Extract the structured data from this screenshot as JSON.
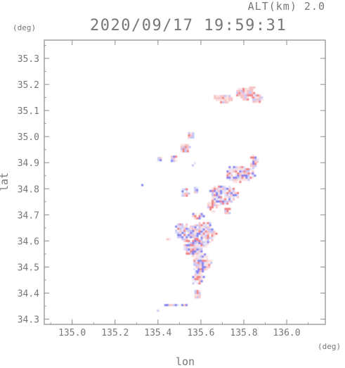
{
  "header": {
    "altitude_label": "ALT(km) 2.0",
    "timestamp": "2020/09/17 19:59:31"
  },
  "axes": {
    "y_unit": "(deg)",
    "x_unit": "(deg)",
    "x_label": "lon",
    "y_label": "lat"
  },
  "colors": {
    "axis": "#8a8a8a",
    "text": "#777777",
    "positive": "#f08080",
    "positive_light": "#f7c2c4",
    "negative": "#7f7ff0",
    "negative_light": "#c4c4f7"
  },
  "chart_data": {
    "type": "heatmap",
    "title": "2020/09/17 19:59:31",
    "subtitle": "ALT(km) 2.0",
    "xlabel": "lon",
    "ylabel": "lat",
    "x_unit": "(deg)",
    "y_unit": "(deg)",
    "xlim": [
      134.87,
      136.18
    ],
    "ylim": [
      34.28,
      35.37
    ],
    "x_ticks": [
      "135.0",
      "135.2",
      "135.4",
      "135.6",
      "135.8",
      "136.0"
    ],
    "y_ticks": [
      "34.3",
      "34.4",
      "34.5",
      "34.6",
      "34.7",
      "34.8",
      "34.9",
      "35.0",
      "35.1",
      "35.2",
      "35.3"
    ],
    "colormap": "diverging blue-white-red, no colorbar shown",
    "regions": [
      {
        "lon": 135.8,
        "lat": 35.17,
        "rx": 0.045,
        "ry": 0.025,
        "polarity": "positive"
      },
      {
        "lon": 135.7,
        "lat": 35.15,
        "rx": 0.05,
        "ry": 0.018,
        "polarity": "positive"
      },
      {
        "lon": 135.86,
        "lat": 35.15,
        "rx": 0.03,
        "ry": 0.02,
        "polarity": "positive"
      },
      {
        "lon": 135.83,
        "lat": 35.19,
        "rx": 0.015,
        "ry": 0.01,
        "polarity": "positive"
      },
      {
        "lon": 135.55,
        "lat": 35.01,
        "rx": 0.02,
        "ry": 0.015,
        "polarity": "positive"
      },
      {
        "lon": 135.52,
        "lat": 34.96,
        "rx": 0.025,
        "ry": 0.02,
        "polarity": "positive"
      },
      {
        "lon": 135.47,
        "lat": 34.92,
        "rx": 0.02,
        "ry": 0.015,
        "polarity": "mixed"
      },
      {
        "lon": 135.4,
        "lat": 34.92,
        "rx": 0.012,
        "ry": 0.01,
        "polarity": "mixed"
      },
      {
        "lon": 135.56,
        "lat": 34.9,
        "rx": 0.012,
        "ry": 0.01,
        "polarity": "negative"
      },
      {
        "lon": 135.78,
        "lat": 34.86,
        "rx": 0.08,
        "ry": 0.035,
        "polarity": "mixed"
      },
      {
        "lon": 135.84,
        "lat": 34.91,
        "rx": 0.02,
        "ry": 0.03,
        "polarity": "mixed"
      },
      {
        "lon": 135.7,
        "lat": 34.78,
        "rx": 0.07,
        "ry": 0.04,
        "polarity": "mixed"
      },
      {
        "lon": 135.65,
        "lat": 34.74,
        "rx": 0.03,
        "ry": 0.025,
        "polarity": "positive"
      },
      {
        "lon": 135.72,
        "lat": 34.72,
        "rx": 0.02,
        "ry": 0.015,
        "polarity": "positive"
      },
      {
        "lon": 135.52,
        "lat": 34.79,
        "rx": 0.02,
        "ry": 0.02,
        "polarity": "mixed"
      },
      {
        "lon": 135.57,
        "lat": 34.8,
        "rx": 0.012,
        "ry": 0.015,
        "polarity": "negative"
      },
      {
        "lon": 135.58,
        "lat": 34.7,
        "rx": 0.03,
        "ry": 0.015,
        "polarity": "mixed"
      },
      {
        "lon": 135.52,
        "lat": 34.64,
        "rx": 0.05,
        "ry": 0.035,
        "polarity": "mixed"
      },
      {
        "lon": 135.61,
        "lat": 34.63,
        "rx": 0.06,
        "ry": 0.05,
        "polarity": "mixed"
      },
      {
        "lon": 135.56,
        "lat": 34.58,
        "rx": 0.05,
        "ry": 0.04,
        "polarity": "mixed"
      },
      {
        "lon": 135.6,
        "lat": 34.52,
        "rx": 0.045,
        "ry": 0.04,
        "polarity": "mixed"
      },
      {
        "lon": 135.58,
        "lat": 34.46,
        "rx": 0.03,
        "ry": 0.03,
        "polarity": "mixed"
      },
      {
        "lon": 135.58,
        "lat": 34.4,
        "rx": 0.02,
        "ry": 0.02,
        "polarity": "positive"
      },
      {
        "lon": 135.44,
        "lat": 34.61,
        "rx": 0.01,
        "ry": 0.008,
        "polarity": "positive"
      },
      {
        "lon": 135.48,
        "lat": 34.36,
        "rx": 0.06,
        "ry": 0.006,
        "polarity": "negative"
      },
      {
        "lon": 135.4,
        "lat": 34.34,
        "rx": 0.015,
        "ry": 0.005,
        "polarity": "negative"
      },
      {
        "lon": 135.32,
        "lat": 34.82,
        "rx": 0.008,
        "ry": 0.006,
        "polarity": "negative"
      }
    ]
  }
}
